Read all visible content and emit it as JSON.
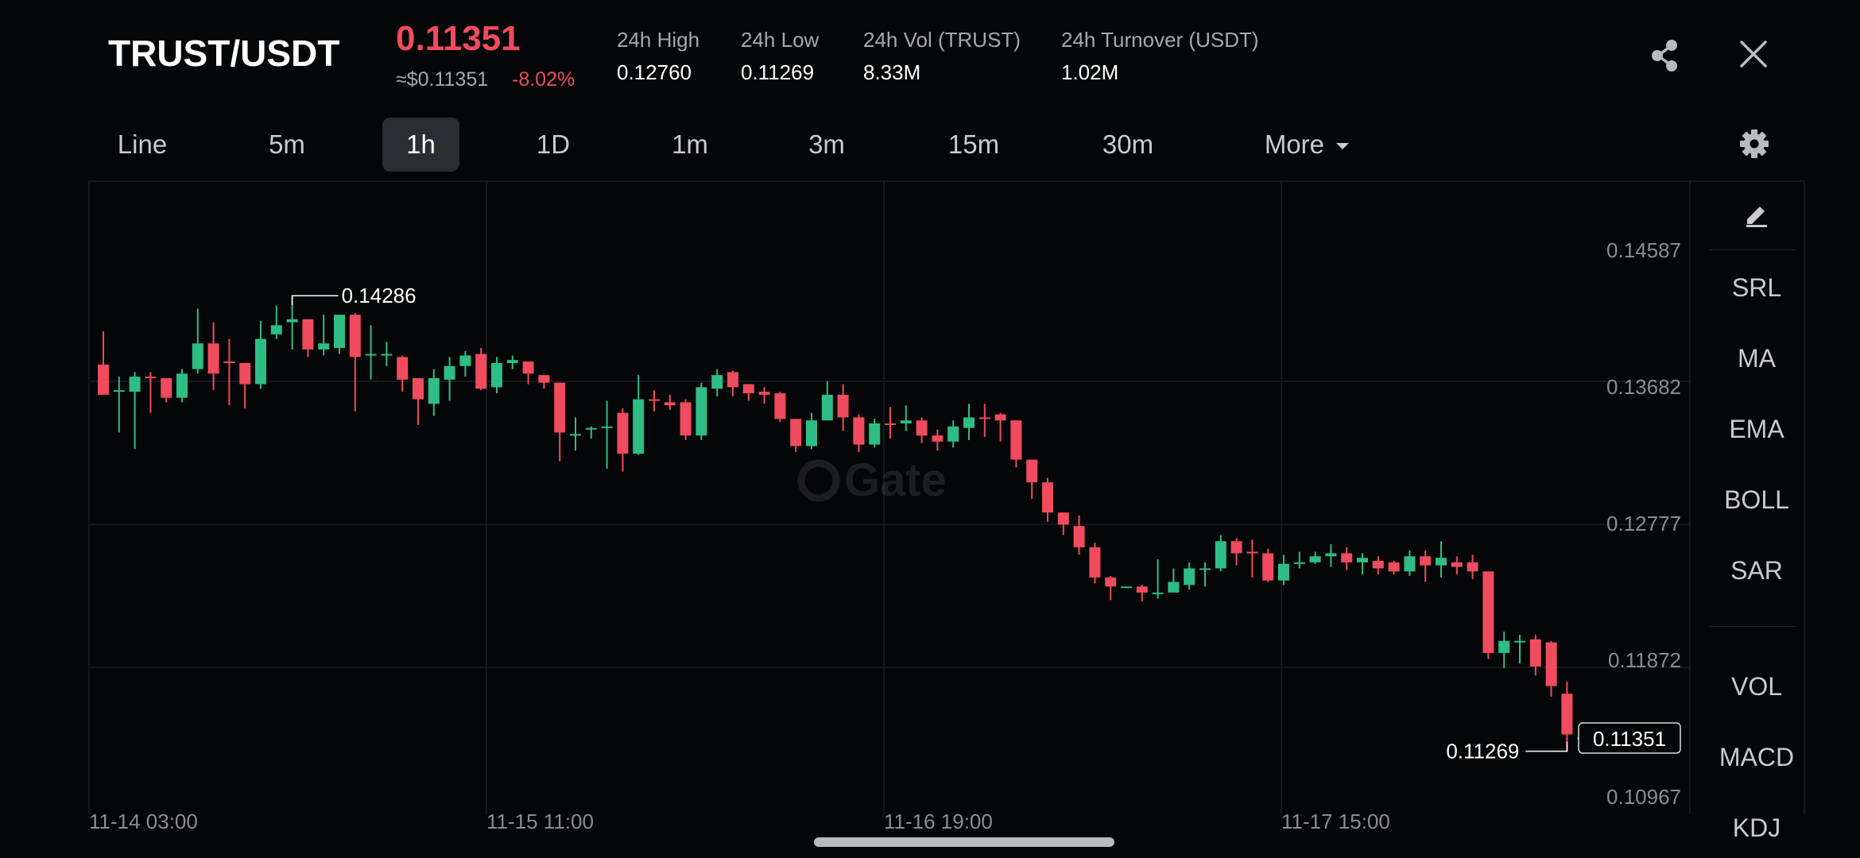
{
  "header": {
    "pair": "TRUST/USDT",
    "price": "0.11351",
    "usd_price": "≈$0.11351",
    "change": "-8.02%",
    "stats": [
      {
        "label": "24h High",
        "value": "0.12760"
      },
      {
        "label": "24h Low",
        "value": "0.11269"
      },
      {
        "label": "24h Vol (TRUST)",
        "value": "8.33M"
      },
      {
        "label": "24h Turnover (USDT)",
        "value": "1.02M"
      }
    ],
    "share_icon": "share-icon",
    "close_icon": "close-icon"
  },
  "timeframes": {
    "tabs": [
      "Line",
      "5m",
      "1h",
      "1D",
      "1m",
      "3m",
      "15m",
      "30m"
    ],
    "active": "1h",
    "more_label": "More",
    "settings_icon": "gear-icon"
  },
  "chart_data": {
    "type": "candlestick",
    "y_ticks": [
      "0.14587",
      "0.13682",
      "0.12777",
      "0.11872",
      "0.10967"
    ],
    "x_ticks": [
      "11-14 03:00",
      "11-15 11:00",
      "11-16 19:00",
      "11-17 15:00"
    ],
    "high_marker": "0.14286",
    "low_marker": "0.11269",
    "last_price": "0.11351",
    "watermark": "Gate",
    "up_color": "#2ebd85",
    "down_color": "#f04b5e",
    "candles": [
      [
        0.1383,
        0.1363,
        0.1405,
        0.1363
      ],
      [
        0.1365,
        0.1366,
        0.1375,
        0.1338
      ],
      [
        0.1365,
        0.1375,
        0.1378,
        0.1327
      ],
      [
        0.1375,
        0.1374,
        0.1378,
        0.1351
      ],
      [
        0.1374,
        0.1361,
        0.1374,
        0.1358
      ],
      [
        0.1361,
        0.1377,
        0.138,
        0.1358
      ],
      [
        0.138,
        0.1397,
        0.142,
        0.1377
      ],
      [
        0.1397,
        0.1377,
        0.1411,
        0.1366
      ],
      [
        0.1385,
        0.1384,
        0.14,
        0.1356
      ],
      [
        0.1384,
        0.137,
        0.1384,
        0.1354
      ],
      [
        0.137,
        0.14,
        0.1412,
        0.1367
      ],
      [
        0.1403,
        0.1409,
        0.1422,
        0.14
      ],
      [
        0.1411,
        0.1413,
        0.1429,
        0.1393
      ],
      [
        0.1413,
        0.1393,
        0.1413,
        0.1388
      ],
      [
        0.1393,
        0.1397,
        0.1416,
        0.1389
      ],
      [
        0.1394,
        0.1416,
        0.1416,
        0.139
      ],
      [
        0.1416,
        0.1388,
        0.1417,
        0.1352
      ],
      [
        0.139,
        0.139,
        0.1409,
        0.1373
      ],
      [
        0.139,
        0.139,
        0.1398,
        0.1382
      ],
      [
        0.1388,
        0.1373,
        0.1389,
        0.1365
      ],
      [
        0.1374,
        0.136,
        0.1374,
        0.1343
      ],
      [
        0.1357,
        0.1374,
        0.138,
        0.1349
      ],
      [
        0.1373,
        0.1382,
        0.1388,
        0.1359
      ],
      [
        0.1382,
        0.1389,
        0.1392,
        0.1375
      ],
      [
        0.139,
        0.1367,
        0.1394,
        0.1366
      ],
      [
        0.1368,
        0.1384,
        0.1388,
        0.1364
      ],
      [
        0.1384,
        0.1386,
        0.1389,
        0.138
      ],
      [
        0.1385,
        0.1377,
        0.1385,
        0.137
      ],
      [
        0.1376,
        0.1371,
        0.1376,
        0.1367
      ],
      [
        0.1371,
        0.1338,
        0.1371,
        0.1319
      ],
      [
        0.1337,
        0.1337,
        0.1348,
        0.1326
      ],
      [
        0.134,
        0.1341,
        0.1342,
        0.1334
      ],
      [
        0.1342,
        0.1342,
        0.1359,
        0.1314
      ],
      [
        0.1351,
        0.1324,
        0.1354,
        0.1312
      ],
      [
        0.1324,
        0.136,
        0.1376,
        0.1323
      ],
      [
        0.136,
        0.1359,
        0.1366,
        0.1352
      ],
      [
        0.1358,
        0.1356,
        0.1363,
        0.1353
      ],
      [
        0.1358,
        0.1336,
        0.136,
        0.1333
      ],
      [
        0.1336,
        0.1368,
        0.1371,
        0.1333
      ],
      [
        0.1367,
        0.1376,
        0.138,
        0.1362
      ],
      [
        0.1378,
        0.1368,
        0.1379,
        0.1362
      ],
      [
        0.137,
        0.1364,
        0.137,
        0.1359
      ],
      [
        0.1365,
        0.1363,
        0.1368,
        0.1357
      ],
      [
        0.1364,
        0.1347,
        0.1365,
        0.1345
      ],
      [
        0.1347,
        0.1329,
        0.1347,
        0.1325
      ],
      [
        0.1329,
        0.1346,
        0.1351,
        0.1327
      ],
      [
        0.1346,
        0.1363,
        0.1372,
        0.1346
      ],
      [
        0.1363,
        0.1348,
        0.137,
        0.1339
      ],
      [
        0.1348,
        0.133,
        0.135,
        0.1325
      ],
      [
        0.133,
        0.1344,
        0.1347,
        0.1328
      ],
      [
        0.1344,
        0.1343,
        0.1355,
        0.1334
      ],
      [
        0.1344,
        0.1346,
        0.1356,
        0.1339
      ],
      [
        0.1346,
        0.1336,
        0.1348,
        0.1331
      ],
      [
        0.1336,
        0.1332,
        0.134,
        0.1326
      ],
      [
        0.1332,
        0.1342,
        0.1346,
        0.1328
      ],
      [
        0.1341,
        0.1348,
        0.1357,
        0.1333
      ],
      [
        0.1348,
        0.1347,
        0.1357,
        0.1335
      ],
      [
        0.135,
        0.1346,
        0.1351,
        0.1332
      ],
      [
        0.1346,
        0.132,
        0.1346,
        0.1315
      ],
      [
        0.132,
        0.1305,
        0.132,
        0.1294
      ],
      [
        0.1305,
        0.1285,
        0.1308,
        0.1279
      ],
      [
        0.1285,
        0.1277,
        0.1285,
        0.127
      ],
      [
        0.1276,
        0.1262,
        0.1283,
        0.1257
      ],
      [
        0.1262,
        0.1242,
        0.1265,
        0.1238
      ],
      [
        0.1242,
        0.1236,
        0.1243,
        0.1227
      ],
      [
        0.1236,
        0.1236,
        0.1236,
        0.1235
      ],
      [
        0.1236,
        0.1232,
        0.1237,
        0.1226
      ],
      [
        0.1232,
        0.1232,
        0.1254,
        0.1228
      ],
      [
        0.1232,
        0.1239,
        0.1248,
        0.1236
      ],
      [
        0.1237,
        0.1248,
        0.1252,
        0.1234
      ],
      [
        0.1247,
        0.1248,
        0.1252,
        0.1236
      ],
      [
        0.1248,
        0.1266,
        0.127,
        0.1246
      ],
      [
        0.1266,
        0.1258,
        0.1268,
        0.125
      ],
      [
        0.1259,
        0.1258,
        0.1267,
        0.1242
      ],
      [
        0.1258,
        0.124,
        0.1261,
        0.1239
      ],
      [
        0.124,
        0.1251,
        0.1257,
        0.1237
      ],
      [
        0.1252,
        0.1252,
        0.1259,
        0.1248
      ],
      [
        0.1252,
        0.1256,
        0.1259,
        0.1251
      ],
      [
        0.1256,
        0.1258,
        0.1264,
        0.1249
      ],
      [
        0.1258,
        0.1252,
        0.1262,
        0.1247
      ],
      [
        0.1252,
        0.1255,
        0.1258,
        0.1244
      ],
      [
        0.1253,
        0.1248,
        0.1256,
        0.1244
      ],
      [
        0.1252,
        0.1246,
        0.1253,
        0.1244
      ],
      [
        0.1246,
        0.1256,
        0.126,
        0.1243
      ],
      [
        0.1256,
        0.125,
        0.126,
        0.1239
      ],
      [
        0.125,
        0.1255,
        0.1266,
        0.1242
      ],
      [
        0.1252,
        0.1249,
        0.1256,
        0.1244
      ],
      [
        0.1252,
        0.1246,
        0.1257,
        0.1241
      ],
      [
        0.1246,
        0.1192,
        0.1246,
        0.1188
      ],
      [
        0.1192,
        0.12,
        0.1206,
        0.1182
      ],
      [
        0.1199,
        0.12,
        0.1204,
        0.1185
      ],
      [
        0.1201,
        0.1183,
        0.1204,
        0.1177
      ],
      [
        0.1199,
        0.117,
        0.12,
        0.1163
      ],
      [
        0.1165,
        0.1138,
        0.1173,
        0.1127
      ],
      [
        0.1135,
        0.1136,
        0.1138,
        0.1131
      ]
    ]
  },
  "indicators": {
    "edit_icon": "pencil-icon",
    "items": [
      "SRL",
      "MA",
      "EMA",
      "BOLL",
      "SAR",
      "VOL",
      "MACD",
      "KDJ"
    ]
  }
}
